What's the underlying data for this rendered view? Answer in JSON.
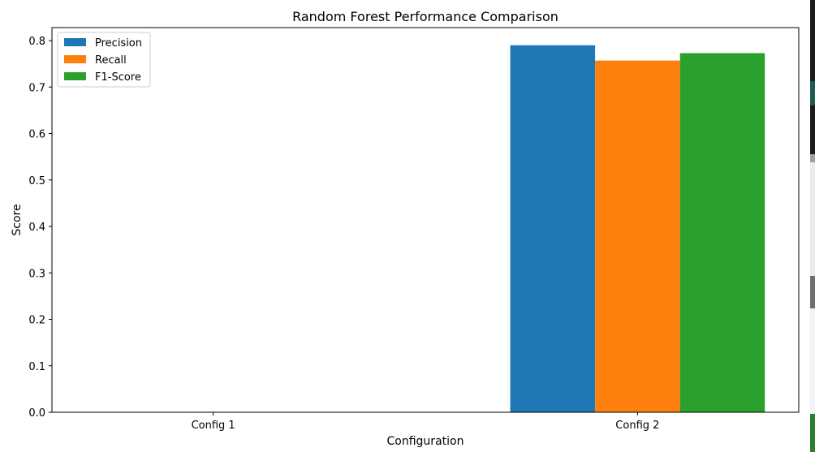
{
  "chart_data": {
    "type": "bar",
    "title": "Random Forest Performance Comparison",
    "xlabel": "Configuration",
    "ylabel": "Score",
    "categories": [
      "Config 1",
      "Config 2"
    ],
    "series": [
      {
        "name": "Precision",
        "values": [
          0,
          0.79
        ],
        "color": "#1f77b4"
      },
      {
        "name": "Recall",
        "values": [
          0,
          0.757
        ],
        "color": "#ff7f0e"
      },
      {
        "name": "F1-Score",
        "values": [
          0,
          0.773
        ],
        "color": "#2ca02c"
      }
    ],
    "ylim": [
      0,
      0.828
    ],
    "yticks": [
      "0.0",
      "0.1",
      "0.2",
      "0.3",
      "0.4",
      "0.5",
      "0.6",
      "0.7",
      "0.8"
    ],
    "grid": false,
    "legend_position": "top-left"
  }
}
